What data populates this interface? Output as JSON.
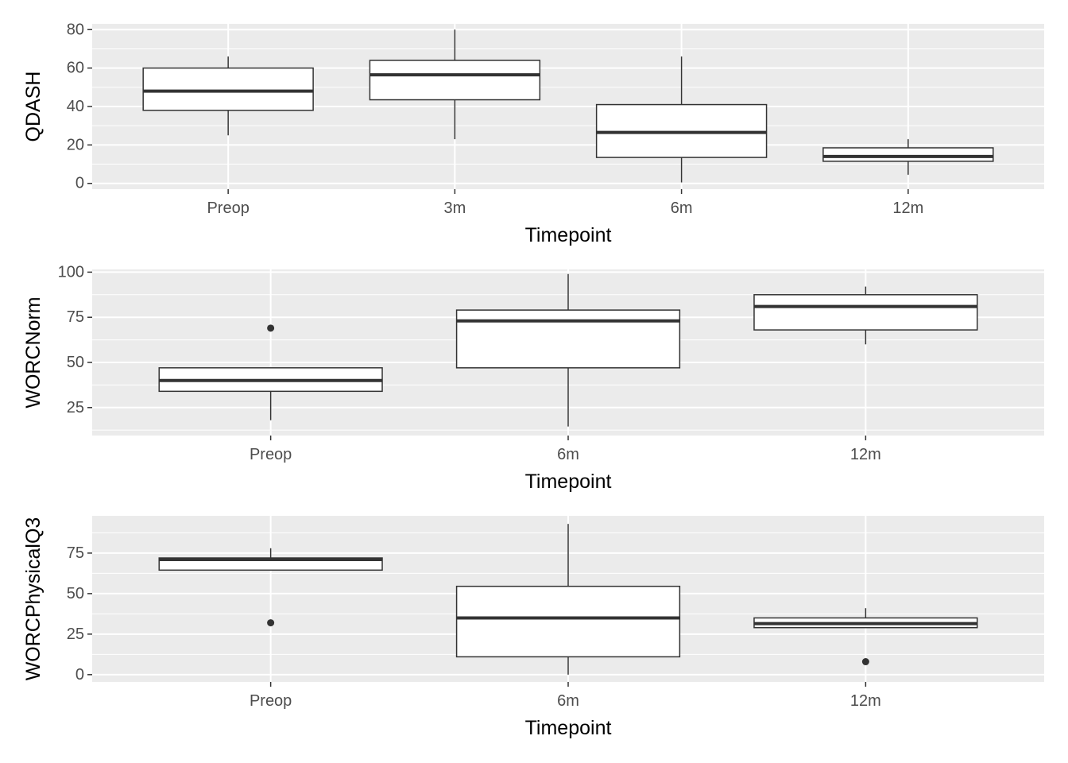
{
  "chart_data": [
    {
      "type": "box",
      "xlabel": "Timepoint",
      "ylabel": "QDASH",
      "categories": [
        "Preop",
        "3m",
        "6m",
        "12m"
      ],
      "yticks": [
        0,
        20,
        40,
        60,
        80
      ],
      "ylim": [
        -3,
        83
      ],
      "grid": true,
      "boxes": [
        {
          "category": "Preop",
          "whisker_low": 25,
          "q1": 38,
          "median": 48,
          "q3": 60,
          "whisker_high": 66,
          "outliers": []
        },
        {
          "category": "3m",
          "whisker_low": 23,
          "q1": 43.5,
          "median": 56.5,
          "q3": 64,
          "whisker_high": 80,
          "outliers": []
        },
        {
          "category": "6m",
          "whisker_low": 0.5,
          "q1": 13.5,
          "median": 26.5,
          "q3": 41,
          "whisker_high": 66,
          "outliers": []
        },
        {
          "category": "12m",
          "whisker_low": 4.5,
          "q1": 11.5,
          "median": 14,
          "q3": 18.5,
          "whisker_high": 23,
          "outliers": []
        }
      ]
    },
    {
      "type": "box",
      "xlabel": "Timepoint",
      "ylabel": "WORCNorm",
      "categories": [
        "Preop",
        "6m",
        "12m"
      ],
      "yticks": [
        25,
        50,
        75,
        100
      ],
      "ylim": [
        9.5,
        101.5
      ],
      "grid": true,
      "boxes": [
        {
          "category": "Preop",
          "whisker_low": 18,
          "q1": 34,
          "median": 40,
          "q3": 47,
          "whisker_high": 47,
          "outliers": [
            69
          ]
        },
        {
          "category": "6m",
          "whisker_low": 14.5,
          "q1": 47,
          "median": 73,
          "q3": 79,
          "whisker_high": 99,
          "outliers": []
        },
        {
          "category": "12m",
          "whisker_low": 60,
          "q1": 68,
          "median": 81,
          "q3": 87.5,
          "whisker_high": 92,
          "outliers": []
        }
      ]
    },
    {
      "type": "box",
      "xlabel": "Timepoint",
      "ylabel": "WORCPhysicalQ3",
      "categories": [
        "Preop",
        "6m",
        "12m"
      ],
      "yticks": [
        0,
        25,
        50,
        75
      ],
      "ylim": [
        -4.5,
        98
      ],
      "grid": true,
      "boxes": [
        {
          "category": "Preop",
          "whisker_low": 64.5,
          "q1": 64.5,
          "median": 71,
          "q3": 72,
          "whisker_high": 78,
          "outliers": [
            32
          ]
        },
        {
          "category": "6m",
          "whisker_low": 0,
          "q1": 11,
          "median": 35,
          "q3": 54.5,
          "whisker_high": 93,
          "outliers": []
        },
        {
          "category": "12m",
          "whisker_low": 29,
          "q1": 29,
          "median": 31.5,
          "q3": 35,
          "whisker_high": 41,
          "outliers": [
            8
          ]
        }
      ]
    }
  ]
}
